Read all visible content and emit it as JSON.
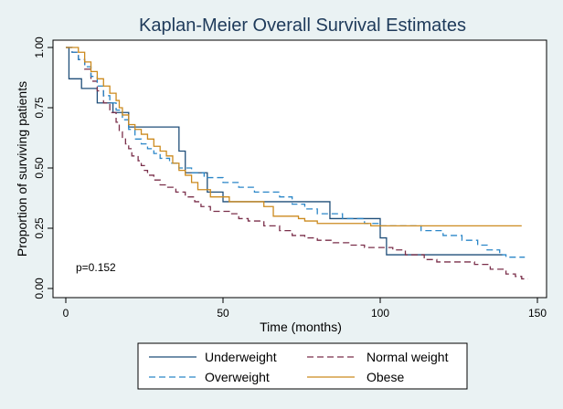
{
  "chart_data": {
    "type": "line",
    "title": "Kaplan-Meier Overall Survival Estimates",
    "xlabel": "Time (months)",
    "ylabel": "Proportion of surviving patients",
    "xlim": [
      0,
      150
    ],
    "ylim": [
      0,
      1
    ],
    "x_ticks": [
      0,
      50,
      100,
      150
    ],
    "y_ticks": [
      0,
      0.25,
      0.5,
      0.75,
      1
    ],
    "x_tick_labels": [
      "0",
      "50",
      "100",
      "150"
    ],
    "y_tick_labels": [
      "0.00",
      "0.25",
      "0.50",
      "0.75",
      "1.00"
    ],
    "grid": false,
    "legend_position": "bottom",
    "annotation": "p=0.152",
    "series": [
      {
        "name": "Underweight",
        "color": "#1f4e79",
        "dash": "solid",
        "steps": [
          [
            0,
            1.0
          ],
          [
            1,
            0.87
          ],
          [
            5,
            0.83
          ],
          [
            10,
            0.77
          ],
          [
            15,
            0.73
          ],
          [
            20,
            0.67
          ],
          [
            36,
            0.57
          ],
          [
            38,
            0.48
          ],
          [
            45,
            0.4
          ],
          [
            50,
            0.36
          ],
          [
            84,
            0.29
          ],
          [
            100,
            0.21
          ],
          [
            102,
            0.14
          ],
          [
            139,
            0.14
          ]
        ]
      },
      {
        "name": "Normal weight",
        "color": "#7a2f4a",
        "dash": "dashed",
        "steps": [
          [
            0,
            1.0
          ],
          [
            2,
            0.98
          ],
          [
            4,
            0.95
          ],
          [
            6,
            0.91
          ],
          [
            8,
            0.86
          ],
          [
            10,
            0.82
          ],
          [
            12,
            0.77
          ],
          [
            14,
            0.73
          ],
          [
            16,
            0.69
          ],
          [
            17,
            0.65
          ],
          [
            18,
            0.62
          ],
          [
            19,
            0.6
          ],
          [
            20,
            0.58
          ],
          [
            21,
            0.55
          ],
          [
            23,
            0.53
          ],
          [
            24,
            0.51
          ],
          [
            25,
            0.49
          ],
          [
            26,
            0.47
          ],
          [
            28,
            0.45
          ],
          [
            30,
            0.43
          ],
          [
            32,
            0.42
          ],
          [
            35,
            0.4
          ],
          [
            38,
            0.38
          ],
          [
            41,
            0.36
          ],
          [
            43,
            0.34
          ],
          [
            46,
            0.32
          ],
          [
            52,
            0.31
          ],
          [
            55,
            0.29
          ],
          [
            58,
            0.28
          ],
          [
            63,
            0.26
          ],
          [
            68,
            0.24
          ],
          [
            72,
            0.22
          ],
          [
            76,
            0.21
          ],
          [
            80,
            0.2
          ],
          [
            85,
            0.19
          ],
          [
            90,
            0.18
          ],
          [
            95,
            0.17
          ],
          [
            104,
            0.16
          ],
          [
            108,
            0.14
          ],
          [
            114,
            0.12
          ],
          [
            118,
            0.11
          ],
          [
            130,
            0.1
          ],
          [
            135,
            0.08
          ],
          [
            140,
            0.06
          ],
          [
            143,
            0.05
          ],
          [
            145,
            0.04
          ],
          [
            147,
            0.04
          ]
        ]
      },
      {
        "name": "Overweight",
        "color": "#2a86c8",
        "dash": "dashed",
        "steps": [
          [
            0,
            1.0
          ],
          [
            2,
            0.98
          ],
          [
            4,
            0.95
          ],
          [
            6,
            0.92
          ],
          [
            8,
            0.88
          ],
          [
            10,
            0.84
          ],
          [
            12,
            0.8
          ],
          [
            14,
            0.77
          ],
          [
            16,
            0.74
          ],
          [
            18,
            0.7
          ],
          [
            20,
            0.66
          ],
          [
            22,
            0.62
          ],
          [
            24,
            0.6
          ],
          [
            26,
            0.58
          ],
          [
            28,
            0.56
          ],
          [
            30,
            0.54
          ],
          [
            33,
            0.52
          ],
          [
            36,
            0.5
          ],
          [
            40,
            0.48
          ],
          [
            44,
            0.46
          ],
          [
            50,
            0.44
          ],
          [
            55,
            0.42
          ],
          [
            60,
            0.4
          ],
          [
            68,
            0.38
          ],
          [
            72,
            0.35
          ],
          [
            76,
            0.33
          ],
          [
            80,
            0.31
          ],
          [
            88,
            0.29
          ],
          [
            95,
            0.27
          ],
          [
            100,
            0.26
          ],
          [
            113,
            0.24
          ],
          [
            120,
            0.22
          ],
          [
            126,
            0.2
          ],
          [
            131,
            0.18
          ],
          [
            134,
            0.16
          ],
          [
            138,
            0.14
          ],
          [
            140,
            0.13
          ],
          [
            146,
            0.13
          ]
        ]
      },
      {
        "name": "Obese",
        "color": "#cc8a1e",
        "dash": "solid",
        "steps": [
          [
            0,
            1.0
          ],
          [
            4,
            0.98
          ],
          [
            6,
            0.94
          ],
          [
            8,
            0.9
          ],
          [
            10,
            0.87
          ],
          [
            12,
            0.84
          ],
          [
            14,
            0.81
          ],
          [
            16,
            0.78
          ],
          [
            17,
            0.75
          ],
          [
            18,
            0.72
          ],
          [
            20,
            0.68
          ],
          [
            22,
            0.66
          ],
          [
            24,
            0.64
          ],
          [
            26,
            0.62
          ],
          [
            28,
            0.59
          ],
          [
            30,
            0.57
          ],
          [
            32,
            0.55
          ],
          [
            34,
            0.52
          ],
          [
            36,
            0.49
          ],
          [
            38,
            0.47
          ],
          [
            40,
            0.44
          ],
          [
            42,
            0.41
          ],
          [
            46,
            0.38
          ],
          [
            52,
            0.36
          ],
          [
            63,
            0.34
          ],
          [
            66,
            0.3
          ],
          [
            74,
            0.29
          ],
          [
            76,
            0.28
          ],
          [
            80,
            0.27
          ],
          [
            97,
            0.26
          ],
          [
            145,
            0.26
          ]
        ]
      }
    ]
  }
}
